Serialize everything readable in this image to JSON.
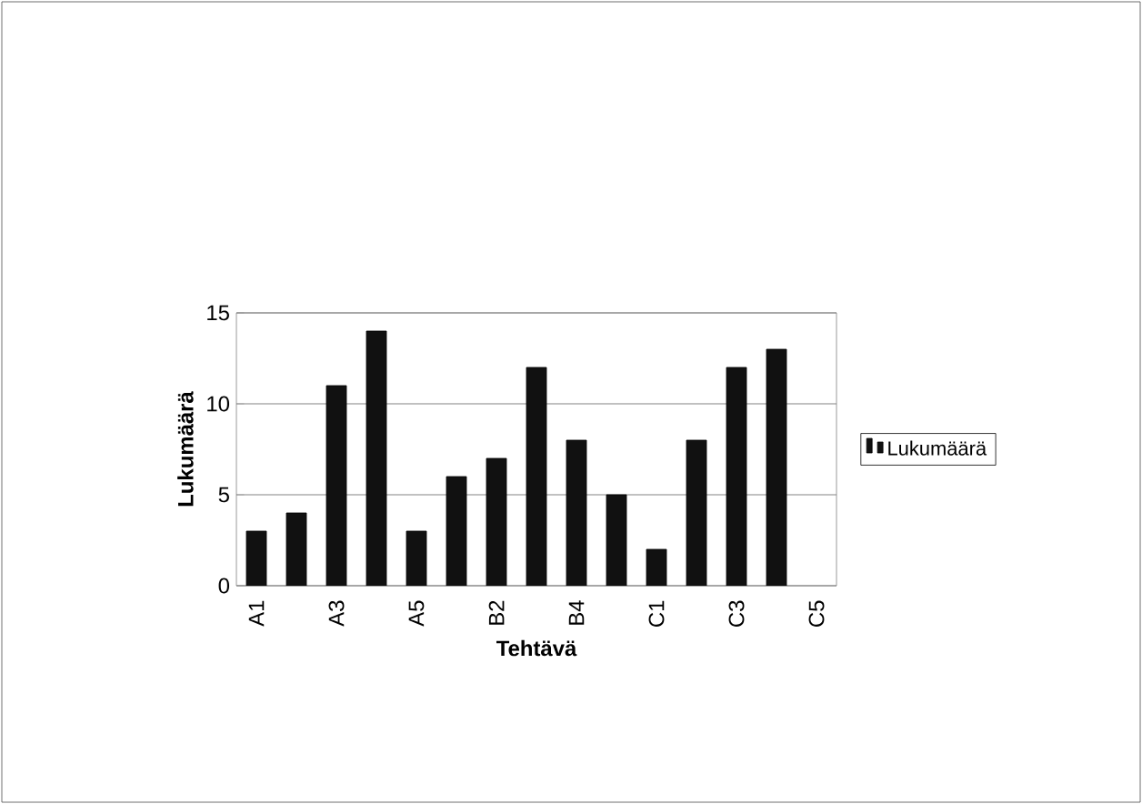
{
  "chart_data": {
    "type": "bar",
    "xlabel": "Tehtävä",
    "ylabel": "Lukumäärä",
    "categories": [
      "A1",
      null,
      "A3",
      null,
      "A5",
      null,
      "B2",
      null,
      "B4",
      null,
      "C1",
      null,
      "C3",
      null,
      "C5"
    ],
    "series": [
      {
        "name": "Lukumäärä",
        "color": "#111111",
        "values": [
          3,
          4,
          11,
          14,
          3,
          6,
          7,
          12,
          8,
          5,
          2,
          8,
          12,
          13,
          null
        ]
      }
    ],
    "ylim": [
      0,
      15
    ],
    "yticks": [
      0,
      5,
      10,
      15
    ],
    "grid": "y",
    "legend": "right"
  }
}
